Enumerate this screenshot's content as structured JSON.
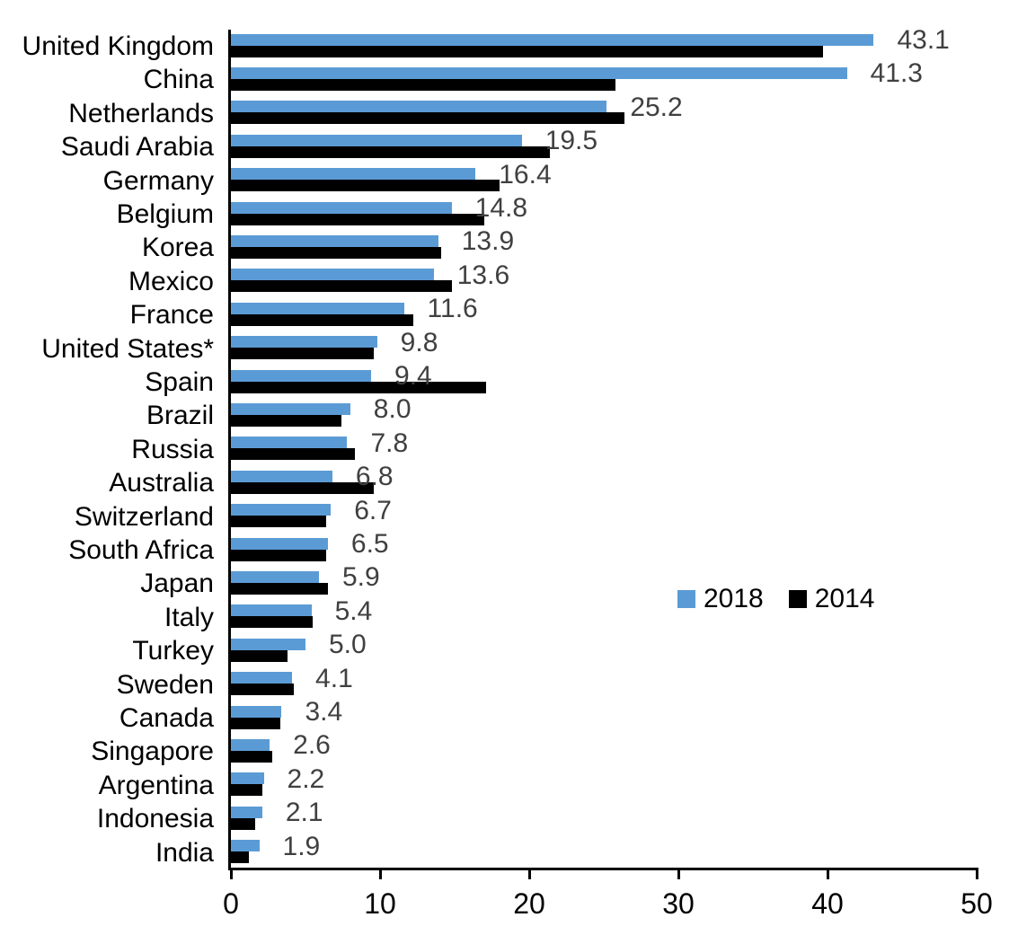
{
  "colors": {
    "series_2018": "#5B9BD5",
    "series_2014": "#000000",
    "value_label_text": "#404040",
    "axis": "#000000",
    "background": "#FFFFFF"
  },
  "legend": {
    "items": [
      {
        "label": "2018",
        "color": "#5B9BD5"
      },
      {
        "label": "2014",
        "color": "#000000"
      }
    ]
  },
  "chart_data": {
    "type": "bar",
    "orientation": "horizontal",
    "title": "",
    "xlabel": "",
    "ylabel": "",
    "xlim": [
      0,
      50
    ],
    "x_ticks": [
      0,
      10,
      20,
      30,
      40,
      50
    ],
    "x_tick_labels": [
      "0",
      "10",
      "20",
      "30",
      "40",
      "50"
    ],
    "grid": false,
    "legend_position": "middle-right",
    "categories": [
      "United Kingdom",
      "China",
      "Netherlands",
      "Saudi Arabia",
      "Germany",
      "Belgium",
      "Korea",
      "Mexico",
      "France",
      "United States*",
      "Spain",
      "Brazil",
      "Russia",
      "Australia",
      "Switzerland",
      "South Africa",
      "Japan",
      "Italy",
      "Turkey",
      "Sweden",
      "Canada",
      "Singapore",
      "Argentina",
      "Indonesia",
      "India"
    ],
    "series": [
      {
        "name": "2018",
        "color": "#5B9BD5",
        "values": [
          43.1,
          41.3,
          25.2,
          19.5,
          16.4,
          14.8,
          13.9,
          13.6,
          11.6,
          9.8,
          9.4,
          8.0,
          7.8,
          6.8,
          6.7,
          6.5,
          5.9,
          5.4,
          5.0,
          4.1,
          3.4,
          2.6,
          2.2,
          2.1,
          1.9
        ]
      },
      {
        "name": "2014",
        "color": "#000000",
        "values": [
          39.7,
          25.8,
          26.4,
          21.4,
          18.0,
          17.0,
          14.1,
          14.8,
          12.2,
          9.6,
          17.1,
          7.4,
          8.3,
          9.6,
          6.4,
          6.4,
          6.5,
          5.5,
          3.8,
          4.2,
          3.3,
          2.8,
          2.1,
          1.6,
          1.2
        ]
      }
    ],
    "data_labels": [
      "43.1",
      "41.3",
      "25.2",
      "19.5",
      "16.4",
      "14.8",
      "13.9",
      "13.6",
      "11.6",
      "9.8",
      "9.4",
      "8.0",
      "7.8",
      "6.8",
      "6.7",
      "6.5",
      "5.9",
      "5.4",
      "5.0",
      "4.1",
      "3.4",
      "2.6",
      "2.2",
      "2.1",
      "1.9"
    ],
    "data_labels_for_series": "2018"
  }
}
